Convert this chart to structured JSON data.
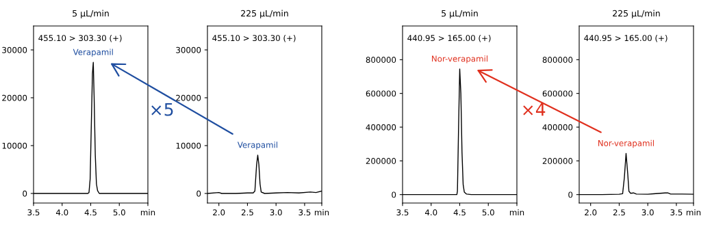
{
  "chart_data": [
    {
      "type": "line",
      "title": "5 µL/min",
      "legend": false,
      "grid": false,
      "series": [
        {
          "color": "#000000",
          "x": [
            3.5,
            3.7,
            3.9,
            4.1,
            4.3,
            4.45,
            4.47,
            4.49,
            4.51,
            4.53,
            4.545,
            4.56,
            4.58,
            4.6,
            4.62,
            4.65,
            4.8,
            5.0,
            5.2,
            5.5
          ],
          "values": [
            0,
            0,
            0,
            0,
            0,
            0,
            200,
            3000,
            14000,
            25000,
            27400,
            20000,
            8000,
            2000,
            600,
            0,
            0,
            0,
            0,
            0
          ]
        }
      ],
      "xlim": [
        3.5,
        5.5
      ],
      "xticks": [
        {
          "value": 3.5,
          "label": "3.5"
        },
        {
          "value": 4.0,
          "label": "4.0"
        },
        {
          "value": 4.5,
          "label": "4.5"
        },
        {
          "value": 5.0,
          "label": "5.0"
        },
        {
          "value": 5.5,
          "label": "min"
        }
      ],
      "ylim": [
        -2000,
        35000
      ],
      "yticks": [
        0,
        10000,
        20000,
        30000
      ],
      "annotations": [
        "455.10 > 303.30 (+)",
        {
          "text": "Verapamil",
          "x": 4.545,
          "y": 27400
        }
      ]
    },
    {
      "type": "line",
      "title": "225 µL/min",
      "legend": false,
      "grid": false,
      "series": [
        {
          "color": "#000000",
          "x": [
            1.8,
            2.0,
            2.05,
            2.3,
            2.5,
            2.6,
            2.63,
            2.66,
            2.68,
            2.7,
            2.72,
            2.74,
            2.8,
            3.0,
            3.2,
            3.4,
            3.6,
            3.7,
            3.8
          ],
          "values": [
            0,
            200,
            0,
            0,
            100,
            100,
            500,
            6000,
            8000,
            6000,
            2000,
            300,
            0,
            100,
            200,
            100,
            300,
            200,
            500
          ]
        }
      ],
      "xlim": [
        1.8,
        3.8
      ],
      "xticks": [
        {
          "value": 2.0,
          "label": "2.0"
        },
        {
          "value": 2.5,
          "label": "2.5"
        },
        {
          "value": 3.0,
          "label": "3.0"
        },
        {
          "value": 3.5,
          "label": "3.5"
        },
        {
          "value": 3.8,
          "label": "min"
        }
      ],
      "ylim": [
        -2000,
        35000
      ],
      "yticks": [
        0,
        10000,
        20000,
        30000
      ],
      "annotations": [
        "455.10 > 303.30 (+)",
        {
          "text": "Verapamil",
          "x": 2.68,
          "y": 8000
        },
        "×5"
      ]
    },
    {
      "type": "line",
      "title": "5 µL/min",
      "legend": false,
      "grid": false,
      "series": [
        {
          "color": "#000000",
          "x": [
            3.5,
            4.0,
            4.45,
            4.46,
            4.48,
            4.5,
            4.52,
            4.54,
            4.56,
            4.58,
            4.62,
            4.7,
            5.0,
            5.5
          ],
          "values": [
            0,
            0,
            0,
            20000,
            400000,
            745000,
            600000,
            250000,
            60000,
            15000,
            3000,
            0,
            0,
            0
          ]
        }
      ],
      "xlim": [
        3.5,
        5.5
      ],
      "xticks": [
        {
          "value": 3.5,
          "label": "3.5"
        },
        {
          "value": 4.0,
          "label": "4.0"
        },
        {
          "value": 4.5,
          "label": "4.5"
        },
        {
          "value": 5.0,
          "label": "5.0"
        },
        {
          "value": 5.5,
          "label": "min"
        }
      ],
      "ylim": [
        -50000,
        1000000
      ],
      "yticks": [
        0,
        200000,
        400000,
        600000,
        800000
      ],
      "annotations": [
        "440.95 > 165.00 (+)",
        {
          "text": "Nor-verapamil",
          "x": 4.5,
          "y": 745000
        }
      ]
    },
    {
      "type": "line",
      "title": "225 µL/min",
      "legend": false,
      "grid": false,
      "series": [
        {
          "color": "#000000",
          "x": [
            1.8,
            2.2,
            2.5,
            2.56,
            2.59,
            2.62,
            2.65,
            2.67,
            2.7,
            2.75,
            2.8,
            3.0,
            3.1,
            3.3,
            3.35,
            3.4,
            3.6,
            3.8
          ],
          "values": [
            0,
            0,
            2000,
            5000,
            100000,
            244000,
            120000,
            20000,
            8000,
            10000,
            3000,
            2000,
            5000,
            10000,
            10000,
            3000,
            3000,
            2000
          ]
        }
      ],
      "xlim": [
        1.8,
        3.8
      ],
      "xticks": [
        {
          "value": 2.0,
          "label": "2.0"
        },
        {
          "value": 2.5,
          "label": "2.5"
        },
        {
          "value": 3.0,
          "label": "3.0"
        },
        {
          "value": 3.5,
          "label": "3.5"
        },
        {
          "value": 3.8,
          "label": "min"
        }
      ],
      "ylim": [
        -50000,
        1000000
      ],
      "yticks": [
        0,
        200000,
        400000,
        600000,
        800000
      ],
      "annotations": [
        "440.95 > 165.00 (+)",
        {
          "text": "Nor-verapamil",
          "x": 2.62,
          "y": 244000
        },
        "×4"
      ]
    }
  ]
}
